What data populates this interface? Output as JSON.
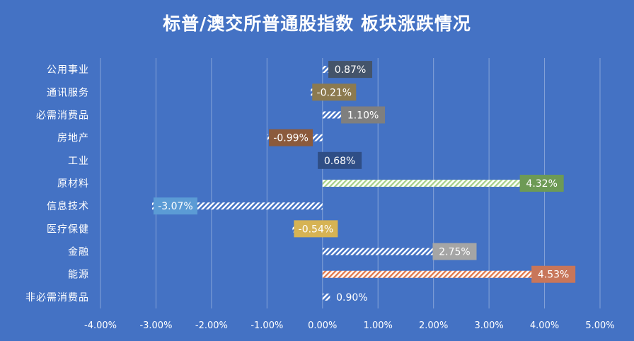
{
  "chart_data": {
    "type": "bar",
    "orientation": "horizontal",
    "title": "标普/澳交所普通股指数 板块涨跌情况",
    "categories": [
      "公用事业",
      "通讯服务",
      "必需消费品",
      "房地产",
      "工业",
      "原材料",
      "信息技术",
      "医疗保健",
      "金融",
      "能源",
      "非必需消费品"
    ],
    "values": [
      0.87,
      -0.21,
      1.1,
      -0.99,
      0.68,
      4.32,
      -3.07,
      -0.54,
      2.75,
      4.53,
      0.9
    ],
    "data_labels": [
      "0.87%",
      "-0.21%",
      "1.10%",
      "-0.99%",
      "0.68%",
      "4.32%",
      "-3.07%",
      "-0.54%",
      "2.75%",
      "4.53%",
      "0.90%"
    ],
    "label_colors": [
      "#44546a",
      "#8c7a4f",
      "#7f7f7f",
      "#8b5a3c",
      "#2f4e86",
      "#6d9a55",
      "#5b9bd5",
      "#d6b354",
      "#a5a5a5",
      "#c8765a",
      "#4472c4"
    ],
    "x_ticks": [
      "-4.00%",
      "-3.00%",
      "-2.00%",
      "-1.00%",
      "0.00%",
      "1.00%",
      "2.00%",
      "3.00%",
      "4.00%",
      "5.00%"
    ],
    "xlim": [
      -4,
      5
    ],
    "xlabel": "",
    "ylabel": "",
    "grid": true,
    "legend": "none",
    "colors": {
      "background": "#4472c4",
      "text": "#ffffff",
      "bar_hatch": "#ffffff",
      "energy_hatch": "#e07a4f",
      "materials_hatch": "#a9d18e",
      "gridline": "#ffffff"
    }
  }
}
